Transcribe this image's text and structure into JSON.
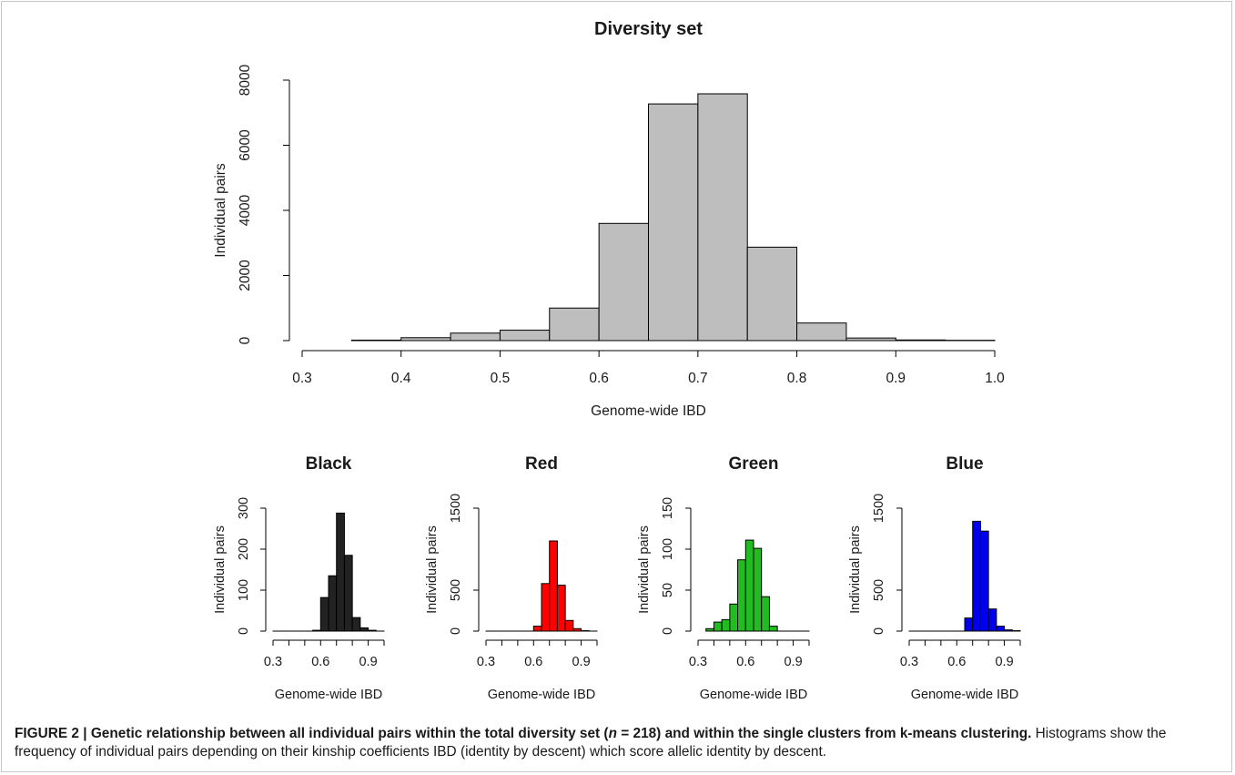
{
  "chart_data": [
    {
      "type": "bar",
      "title": "Diversity set",
      "xlabel": "Genome-wide IBD",
      "ylabel": "Individual pairs",
      "bin_edges": [
        0.35,
        0.4,
        0.45,
        0.5,
        0.55,
        0.6,
        0.65,
        0.7,
        0.75,
        0.8,
        0.85,
        0.9,
        0.95,
        1.0
      ],
      "values": [
        15,
        90,
        230,
        320,
        1000,
        3600,
        7270,
        7580,
        2870,
        540,
        80,
        20,
        10
      ],
      "xlim": [
        0.3,
        1.0
      ],
      "ylim": [
        0,
        8000
      ],
      "x_ticks": [
        "0.3",
        "0.4",
        "0.5",
        "0.6",
        "0.7",
        "0.8",
        "0.9",
        "1.0"
      ],
      "y_ticks": [
        "0",
        "2000",
        "4000",
        "6000",
        "8000"
      ],
      "bar_color": "#bebebe",
      "grid": false
    },
    {
      "type": "bar",
      "title": "Black",
      "xlabel": "Genome-wide IBD",
      "ylabel": "Individual pairs",
      "bin_edges": [
        0.3,
        0.35,
        0.4,
        0.45,
        0.5,
        0.55,
        0.6,
        0.65,
        0.7,
        0.75,
        0.8,
        0.85,
        0.9,
        0.95,
        1.0
      ],
      "values": [
        0,
        0,
        0,
        0,
        0,
        2,
        82,
        135,
        288,
        185,
        33,
        8,
        2,
        0
      ],
      "xlim": [
        0.3,
        1.0
      ],
      "ylim": [
        0,
        300
      ],
      "x_ticks": [
        "0.3",
        "0.6",
        "0.9"
      ],
      "y_ticks": [
        "0",
        "100",
        "200",
        "300"
      ],
      "bar_color": "#222222",
      "grid": false
    },
    {
      "type": "bar",
      "title": "Red",
      "xlabel": "Genome-wide IBD",
      "ylabel": "Individual pairs",
      "bin_edges": [
        0.3,
        0.35,
        0.4,
        0.45,
        0.5,
        0.55,
        0.6,
        0.65,
        0.7,
        0.75,
        0.8,
        0.85,
        0.9,
        0.95,
        1.0
      ],
      "values": [
        0,
        0,
        0,
        0,
        0,
        0,
        60,
        580,
        1100,
        560,
        130,
        30,
        5,
        0
      ],
      "xlim": [
        0.3,
        1.0
      ],
      "ylim": [
        0,
        1500
      ],
      "x_ticks": [
        "0.3",
        "0.6",
        "0.9"
      ],
      "y_ticks": [
        "0",
        "500",
        "1500"
      ],
      "bar_color": "#ff0000",
      "grid": false
    },
    {
      "type": "bar",
      "title": "Green",
      "xlabel": "Genome-wide IBD",
      "ylabel": "Individual pairs",
      "bin_edges": [
        0.35,
        0.4,
        0.45,
        0.5,
        0.55,
        0.6,
        0.65,
        0.7,
        0.75,
        0.8,
        0.85,
        0.9,
        0.95,
        1.0
      ],
      "values": [
        3,
        11,
        14,
        33,
        87,
        111,
        101,
        42,
        6,
        0,
        0,
        0,
        0
      ],
      "xlim": [
        0.3,
        1.0
      ],
      "ylim": [
        0,
        150
      ],
      "x_ticks": [
        "0.3",
        "0.6",
        "0.9"
      ],
      "y_ticks": [
        "0",
        "50",
        "100",
        "150"
      ],
      "bar_color": "#22bb22",
      "grid": false
    },
    {
      "type": "bar",
      "title": "Blue",
      "xlabel": "Genome-wide IBD",
      "ylabel": "Individual pairs",
      "bin_edges": [
        0.3,
        0.35,
        0.4,
        0.45,
        0.5,
        0.55,
        0.6,
        0.65,
        0.7,
        0.75,
        0.8,
        0.85,
        0.9,
        0.95,
        1.0
      ],
      "values": [
        0,
        0,
        0,
        0,
        0,
        0,
        0,
        160,
        1340,
        1220,
        270,
        60,
        15,
        5
      ],
      "xlim": [
        0.3,
        1.0
      ],
      "ylim": [
        0,
        1500
      ],
      "x_ticks": [
        "0.3",
        "0.6",
        "0.9"
      ],
      "y_ticks": [
        "0",
        "500",
        "1500"
      ],
      "bar_color": "#0000ee",
      "grid": false
    }
  ],
  "caption": {
    "label": "FIGURE 2 | Genetic relationship between all individual pairs within the total diversity set (",
    "n_symbol": "n",
    "n_value": " = 218) and within the single clusters from k-means clustering.",
    "text": " Histograms show the frequency of individual pairs depending on their kinship coefficients IBD (identity by descent) which score allelic identity by descent."
  }
}
